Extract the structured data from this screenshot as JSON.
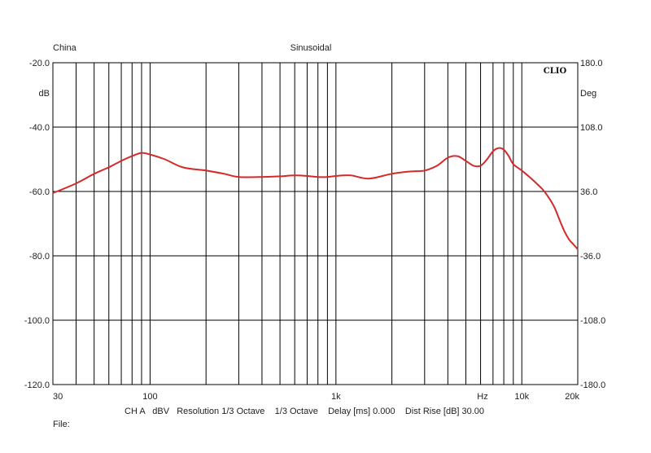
{
  "header": {
    "left": "China",
    "center": "Sinusoidal",
    "brand": "CLIO"
  },
  "footer": {
    "info": "CH A   dBV   Resolution 1/3 Octave    1/3 Octave    Delay [ms] 0.000    Dist Rise [dB] 30.00",
    "file_label": "File:"
  },
  "colors": {
    "curve": "#d42a2a",
    "grid": "#000000",
    "background": "#ffffff"
  },
  "chart_data": {
    "type": "line",
    "title": "Sinusoidal",
    "xscale": "log",
    "xlim": [
      30,
      20000
    ],
    "ylim": [
      -120,
      -20
    ],
    "y2lim": [
      -180,
      180
    ],
    "xlabel": "Hz",
    "ylabel": "dB",
    "y2label": "Deg",
    "grid": true,
    "x_ticks": [
      {
        "value": 30,
        "label": "30"
      },
      {
        "value": 100,
        "label": "100"
      },
      {
        "value": 1000,
        "label": "1k"
      },
      {
        "value": 10000,
        "label": "10k"
      },
      {
        "value": 20000,
        "label": "20k"
      }
    ],
    "y_ticks": [
      {
        "value": -20,
        "label": "-20.0"
      },
      {
        "value": -40,
        "label": "-40.0"
      },
      {
        "value": -60,
        "label": "-60.0"
      },
      {
        "value": -80,
        "label": "-80.0"
      },
      {
        "value": -100,
        "label": "-100.0"
      },
      {
        "value": -120,
        "label": "-120.0"
      }
    ],
    "y2_ticks": [
      {
        "value": 180,
        "label": "180.0"
      },
      {
        "value": 108,
        "label": "108.0"
      },
      {
        "value": 36,
        "label": "36.0"
      },
      {
        "value": -36,
        "label": "-36.0"
      },
      {
        "value": -108,
        "label": "-108.0"
      },
      {
        "value": -180,
        "label": "-180.0"
      }
    ],
    "series": [
      {
        "color": "#d42a2a",
        "x": [
          30,
          40,
          50,
          60,
          70,
          80,
          90,
          100,
          120,
          150,
          200,
          250,
          300,
          400,
          500,
          600,
          700,
          800,
          900,
          1000,
          1200,
          1500,
          2000,
          2500,
          3000,
          3500,
          4000,
          4500,
          5000,
          5500,
          6000,
          6500,
          7000,
          7500,
          8000,
          8500,
          9000,
          10000,
          11000,
          12000,
          13000,
          14000,
          15000,
          16000,
          17000,
          18000,
          19000,
          20000
        ],
        "y": [
          -60.5,
          -57.5,
          -54.5,
          -52.5,
          -50.5,
          -49.0,
          -48.0,
          -48.5,
          -50.0,
          -52.5,
          -53.5,
          -54.5,
          -55.5,
          -55.5,
          -55.3,
          -55.0,
          -55.2,
          -55.5,
          -55.5,
          -55.2,
          -55.0,
          -56.0,
          -54.5,
          -53.8,
          -53.5,
          -52.0,
          -49.5,
          -49.0,
          -50.5,
          -52.0,
          -52.0,
          -50.0,
          -47.5,
          -46.5,
          -47.0,
          -49.0,
          -51.5,
          -53.5,
          -55.5,
          -57.5,
          -59.5,
          -62.0,
          -65.0,
          -69.0,
          -72.5,
          -75.0,
          -76.5,
          -78.0
        ]
      }
    ]
  }
}
